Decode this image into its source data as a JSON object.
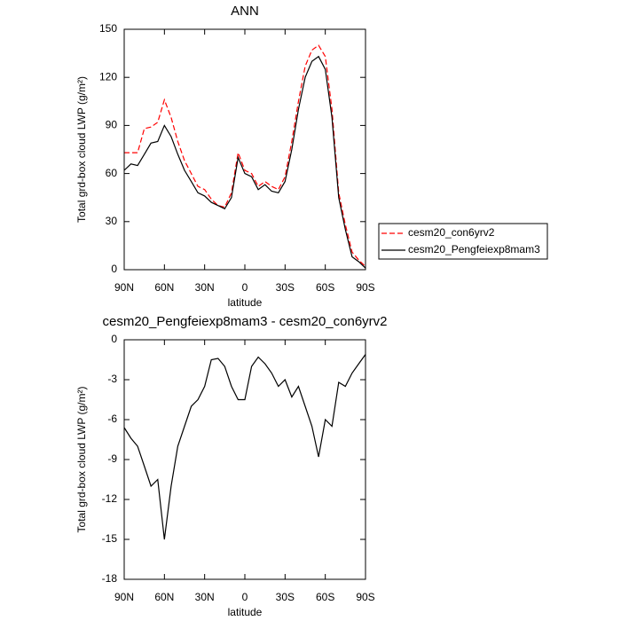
{
  "chart_data": [
    {
      "type": "line",
      "title": "ANN",
      "xlabel": "latitude",
      "ylabel": "Total grd-box cloud LWP (g/m²)",
      "x": [
        90,
        85,
        80,
        75,
        70,
        65,
        60,
        55,
        50,
        45,
        40,
        35,
        30,
        25,
        20,
        15,
        10,
        5,
        0,
        -5,
        -10,
        -15,
        -20,
        -25,
        -30,
        -35,
        -40,
        -45,
        -50,
        -55,
        -60,
        -65,
        -70,
        -75,
        -80,
        -85,
        -90
      ],
      "series": [
        {
          "name": "cesm20_con6yrv2",
          "color": "#ff0000",
          "dash": true,
          "values": [
            73,
            73,
            73,
            88,
            89,
            92,
            106,
            95,
            80,
            68,
            60,
            52,
            50,
            44,
            40,
            39,
            48,
            73,
            62,
            60,
            52,
            55,
            52,
            50,
            58,
            80,
            105,
            127,
            137,
            140,
            133,
            100,
            48,
            28,
            11,
            6,
            2
          ]
        },
        {
          "name": "cesm20_Pengfeiexp8mam3",
          "color": "#000000",
          "dash": false,
          "values": [
            62,
            66,
            65,
            72,
            79,
            80,
            90,
            83,
            72,
            62,
            55,
            48,
            46,
            42,
            40,
            38,
            45,
            70,
            60,
            58,
            50,
            53,
            49,
            48,
            55,
            75,
            100,
            120,
            130,
            133,
            125,
            95,
            45,
            25,
            8,
            5,
            1
          ]
        }
      ],
      "xlim": [
        90,
        -90
      ],
      "xticks": [
        {
          "value": 90,
          "label": "90N"
        },
        {
          "value": 60,
          "label": "60N"
        },
        {
          "value": 30,
          "label": "30N"
        },
        0,
        {
          "value": -30,
          "label": "30S"
        },
        {
          "value": -60,
          "label": "60S"
        },
        {
          "value": -90,
          "label": "90S"
        }
      ],
      "ylim": [
        0,
        150
      ],
      "yticks": [
        0,
        30,
        60,
        90,
        120,
        150
      ],
      "legend": "right"
    },
    {
      "type": "line",
      "title": "cesm20_Pengfeiexp8mam3 - cesm20_con6yrv2",
      "xlabel": "latitude",
      "ylabel": "Total grd-box cloud LWP (g/m²)",
      "x": [
        90,
        85,
        80,
        75,
        70,
        65,
        60,
        55,
        50,
        45,
        40,
        35,
        30,
        25,
        20,
        15,
        10,
        5,
        0,
        -5,
        -10,
        -15,
        -20,
        -25,
        -30,
        -35,
        -40,
        -45,
        -50,
        -55,
        -60,
        -65,
        -70,
        -75,
        -80,
        -85,
        -90
      ],
      "series": [
        {
          "color": "#000000",
          "dash": false,
          "values": [
            -6.6,
            -7.4,
            -8,
            -9.5,
            -11,
            -10.5,
            -15,
            -11,
            -8,
            -6.5,
            -5,
            -4.5,
            -3.5,
            -1.5,
            -1.4,
            -2,
            -3.5,
            -4.5,
            -4.5,
            -2,
            -1.3,
            -1.8,
            -2.5,
            -3.5,
            -3,
            -4.3,
            -3.5,
            -5,
            -6.5,
            -8.8,
            -6,
            -6.5,
            -3.2,
            -3.5,
            -2.5,
            -1.8,
            -1.1
          ]
        }
      ],
      "xlim": [
        90,
        -90
      ],
      "xticks": [
        {
          "value": 90,
          "label": "90N"
        },
        {
          "value": 60,
          "label": "60N"
        },
        {
          "value": 30,
          "label": "30N"
        },
        0,
        {
          "value": -30,
          "label": "30S"
        },
        {
          "value": -60,
          "label": "60S"
        },
        {
          "value": -90,
          "label": "90S"
        }
      ],
      "ylim": [
        -18,
        0
      ],
      "yticks": [
        -18,
        -15,
        -12,
        -9,
        -6,
        -3,
        0
      ]
    }
  ]
}
